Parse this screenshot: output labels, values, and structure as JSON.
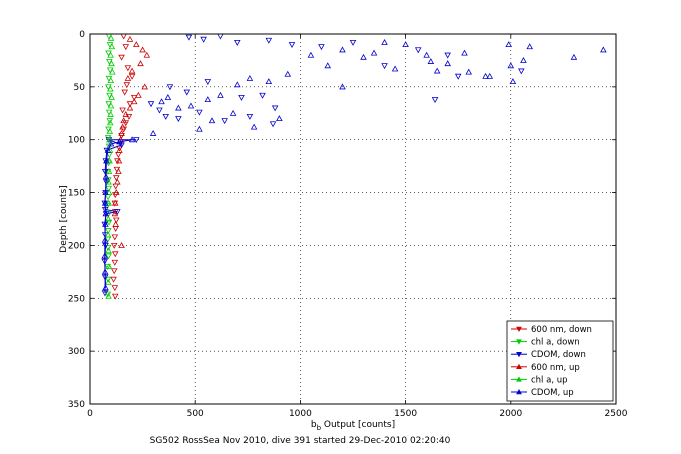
{
  "figure": {
    "caption": "SG502 RossSea Nov 2010, dive 391 started 29-Dec-2010 02:20:40"
  },
  "chart_data": {
    "type": "scatter",
    "title": "",
    "xlabel_main": "b",
    "xlabel_sub": "b",
    "xlabel_rest": " Output [counts]",
    "ylabel": "Depth [counts]",
    "xlim": [
      0,
      2500
    ],
    "ylim": [
      0,
      350
    ],
    "y_reversed": true,
    "x_ticks": [
      0,
      500,
      1000,
      1500,
      2000,
      2500
    ],
    "y_ticks": [
      0,
      50,
      100,
      150,
      200,
      250,
      300,
      350
    ],
    "grid": true,
    "grid_style": "dotted",
    "legend_position": "bottom-right",
    "series": [
      {
        "name": "600 nm, down",
        "color": "#cc0000",
        "marker": "triangle-down",
        "x": [
          160,
          170,
          150,
          180,
          200,
          175,
          165,
          210,
          190,
          155,
          185,
          170,
          160,
          150,
          145,
          140,
          135,
          130,
          128,
          125,
          122,
          120,
          118,
          120,
          125,
          122,
          118,
          115,
          120,
          118,
          115,
          112,
          118,
          120
        ],
        "y": [
          2,
          12,
          22,
          32,
          40,
          48,
          55,
          60,
          66,
          72,
          78,
          84,
          90,
          96,
          102,
          108,
          114,
          120,
          128,
          136,
          144,
          152,
          160,
          168,
          176,
          184,
          192,
          200,
          208,
          216,
          224,
          232,
          240,
          248
        ]
      },
      {
        "name": "chl a, down",
        "color": "#00cc00",
        "marker": "triangle-down",
        "x": [
          90,
          95,
          88,
          92,
          96,
          90,
          87,
          93,
          89,
          91,
          94,
          88,
          86,
          90,
          92,
          88,
          85,
          87,
          89,
          86,
          84,
          88,
          90,
          87,
          85,
          86,
          88,
          84,
          86,
          85
        ],
        "y": [
          2,
          10,
          18,
          26,
          34,
          42,
          50,
          58,
          66,
          74,
          82,
          90,
          98,
          106,
          114,
          122,
          130,
          138,
          146,
          154,
          162,
          170,
          178,
          186,
          194,
          202,
          210,
          220,
          232,
          246
        ]
      },
      {
        "name": "CDOM, down",
        "color": "#0000cc",
        "marker": "triangle-down",
        "x": [
          470,
          540,
          620,
          700,
          850,
          960,
          1100,
          1250,
          1400,
          1560,
          1700,
          380,
          460,
          560,
          720,
          820,
          880,
          1640,
          1750,
          2050,
          290,
          330,
          360,
          420,
          520,
          640,
          760,
          870,
          220,
          150,
          90,
          80,
          75,
          72,
          78,
          74,
          70,
          72,
          76,
          130,
          70,
          72,
          74,
          70,
          72,
          71
        ],
        "y": [
          3,
          5,
          2,
          8,
          6,
          10,
          12,
          8,
          30,
          15,
          20,
          50,
          55,
          45,
          60,
          58,
          70,
          62,
          40,
          35,
          66,
          72,
          78,
          80,
          74,
          82,
          78,
          85,
          100,
          105,
          100,
          110,
          120,
          130,
          140,
          150,
          160,
          166,
          170,
          168,
          180,
          190,
          200,
          215,
          230,
          245
        ]
      },
      {
        "name": "600 nm, up",
        "color": "#cc0000",
        "marker": "triangle-up",
        "x": [
          190,
          220,
          250,
          270,
          240,
          200,
          180,
          260,
          230,
          210,
          190,
          170,
          160,
          155,
          150,
          145,
          140,
          138,
          135,
          130,
          125,
          120,
          118,
          122,
          150
        ],
        "y": [
          5,
          10,
          15,
          20,
          28,
          35,
          42,
          50,
          58,
          64,
          70,
          76,
          82,
          88,
          94,
          100,
          110,
          120,
          130,
          140,
          150,
          160,
          170,
          180,
          200
        ]
      },
      {
        "name": "chl a, up",
        "color": "#00cc00",
        "marker": "triangle-up",
        "x": [
          100,
          104,
          98,
          102,
          106,
          99,
          97,
          103,
          100,
          98,
          96,
          94,
          92,
          95,
          93,
          90,
          88,
          91,
          89,
          87,
          86,
          88,
          90,
          87,
          88
        ],
        "y": [
          4,
          12,
          20,
          28,
          36,
          44,
          52,
          60,
          68,
          76,
          84,
          92,
          100,
          110,
          120,
          130,
          140,
          150,
          160,
          175,
          190,
          205,
          220,
          235,
          248
        ]
      },
      {
        "name": "CDOM, up",
        "color": "#0000cc",
        "marker": "triangle-up",
        "x": [
          2440,
          1600,
          1650,
          1700,
          1880,
          2010,
          2060,
          2090,
          1500,
          1400,
          1350,
          1300,
          1200,
          1130,
          1050,
          940,
          850,
          760,
          700,
          620,
          560,
          480,
          420,
          370,
          340,
          900,
          780,
          1200,
          1450,
          1620,
          1780,
          1990,
          2000,
          2300,
          1900,
          1800,
          680,
          580,
          520,
          300,
          200,
          140,
          100,
          85,
          78,
          76,
          74,
          72,
          75,
          73,
          71,
          70,
          72,
          74
        ],
        "y": [
          15,
          20,
          35,
          28,
          40,
          45,
          25,
          12,
          10,
          8,
          18,
          22,
          15,
          30,
          20,
          38,
          45,
          42,
          48,
          58,
          62,
          68,
          70,
          60,
          64,
          80,
          88,
          50,
          33,
          26,
          18,
          10,
          30,
          22,
          40,
          36,
          75,
          82,
          90,
          94,
          100,
          102,
          104,
          110,
          120,
          135,
          150,
          160,
          170,
          180,
          195,
          210,
          225,
          240
        ]
      }
    ]
  }
}
